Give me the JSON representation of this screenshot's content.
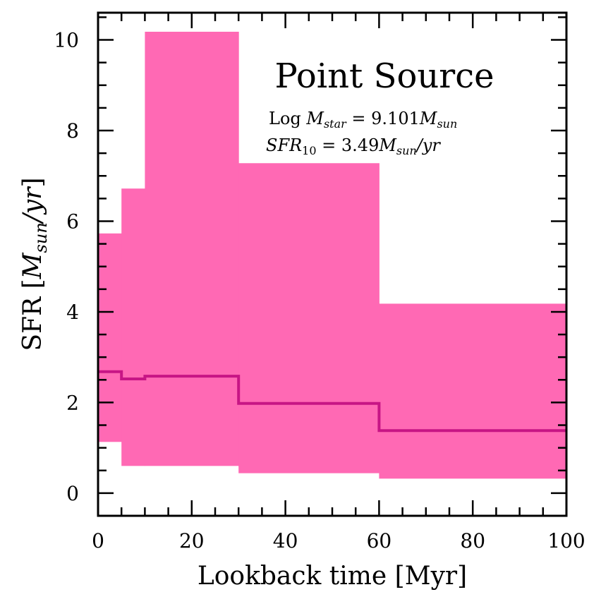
{
  "chart_data": {
    "type": "step",
    "title": "Point Source",
    "xlabel": "Lookback time [Myr]",
    "ylabel": "SFR [M_sun/yr]",
    "xlim": [
      0,
      100
    ],
    "ylim": [
      -0.5,
      10.6
    ],
    "xticks": [
      0,
      20,
      40,
      60,
      80,
      100
    ],
    "yticks": [
      0,
      2,
      4,
      6,
      8,
      10
    ],
    "colors": {
      "band": "#ff69b4",
      "median": "#c71585"
    },
    "bins": [
      {
        "x0": 0,
        "x1": 5,
        "median": 2.68,
        "lower": 1.13,
        "upper": 5.73
      },
      {
        "x0": 5,
        "x1": 10,
        "median": 2.52,
        "lower": 0.6,
        "upper": 6.72
      },
      {
        "x0": 10,
        "x1": 30,
        "median": 2.58,
        "lower": 0.6,
        "upper": 10.18
      },
      {
        "x0": 30,
        "x1": 60,
        "median": 1.98,
        "lower": 0.44,
        "upper": 7.28
      },
      {
        "x0": 60,
        "x1": 100,
        "median": 1.38,
        "lower": 0.32,
        "upper": 4.18
      }
    ],
    "annotations": {
      "mass_line": {
        "prefix": "Log ",
        "sym": "M",
        "sub": "star",
        "eq": " = 9.101",
        "sym2": "M",
        "sub2": "sun"
      },
      "sfr_line": {
        "sym": "SFR",
        "sub": "10",
        "eq": " = 3.49",
        "sym2": "M",
        "sub2": "sun",
        "tail": "/yr"
      }
    }
  }
}
